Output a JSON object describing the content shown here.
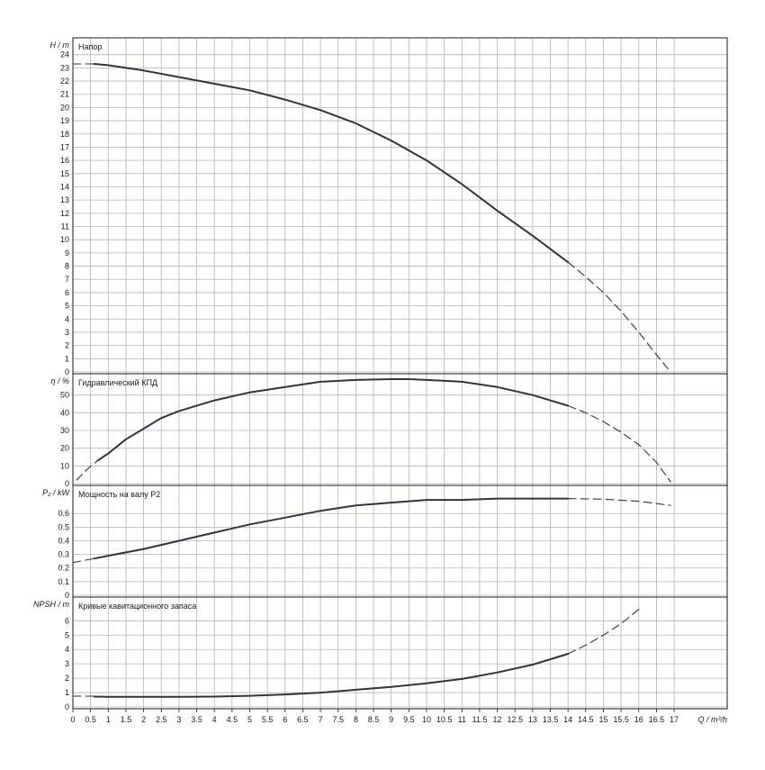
{
  "chart_data": [
    {
      "type": "line",
      "title": "Напор",
      "ylabel": "H / m",
      "xlabel": "Q / m³/h",
      "xlim": [
        0,
        18.5
      ],
      "ylim": [
        0,
        25
      ],
      "yticks": [
        0,
        1,
        2,
        3,
        4,
        5,
        6,
        7,
        8,
        9,
        10,
        11,
        12,
        13,
        14,
        15,
        16,
        17,
        18,
        19,
        20,
        21,
        22,
        23,
        24
      ],
      "series": [
        {
          "style": "solid",
          "x": [
            0.6,
            1,
            2,
            3,
            4,
            5,
            6,
            7,
            8,
            9,
            10,
            11,
            12,
            13,
            14
          ],
          "y": [
            23.3,
            23.2,
            22.8,
            22.3,
            21.8,
            21.3,
            20.6,
            19.8,
            18.8,
            17.5,
            16.0,
            14.2,
            12.2,
            10.3,
            8.3
          ]
        },
        {
          "style": "dashed",
          "x": [
            0,
            0.6
          ],
          "y": [
            23.3,
            23.3
          ]
        },
        {
          "style": "dashed",
          "x": [
            14,
            14.5,
            15,
            15.5,
            16,
            16.5,
            16.9
          ],
          "y": [
            8.3,
            7.2,
            6.0,
            4.6,
            3.0,
            1.3,
            0
          ]
        }
      ]
    },
    {
      "type": "line",
      "title": "Гидравлический КПД",
      "ylabel": "η / %",
      "xlim": [
        0,
        18.5
      ],
      "ylim": [
        0,
        60
      ],
      "yticks": [
        0,
        10,
        20,
        30,
        40,
        50
      ],
      "series": [
        {
          "style": "dashed",
          "x": [
            0.1,
            0.4,
            0.7
          ],
          "y": [
            2,
            8,
            13
          ]
        },
        {
          "style": "solid",
          "x": [
            0.7,
            1,
            1.5,
            2,
            2.5,
            3,
            4,
            5,
            6,
            7,
            8,
            9,
            9.5,
            10,
            11,
            12,
            13,
            14
          ],
          "y": [
            13,
            17,
            25,
            31,
            37,
            41,
            47,
            51.5,
            54.5,
            57.5,
            58.5,
            59,
            59,
            58.5,
            57.5,
            54.5,
            50,
            44
          ]
        },
        {
          "style": "dashed",
          "x": [
            14,
            14.5,
            15,
            15.5,
            16,
            16.5,
            16.9
          ],
          "y": [
            44,
            40,
            35,
            29,
            22,
            12,
            1
          ]
        }
      ]
    },
    {
      "type": "line",
      "title": "Мощность на валу P2",
      "ylabel": "P₂ / kW",
      "xlim": [
        0,
        18.5
      ],
      "ylim": [
        0,
        0.78
      ],
      "yticks": [
        0,
        0.1,
        0.2,
        0.3,
        0.4,
        0.5,
        0.6
      ],
      "yticklabels": [
        "0",
        "0.1",
        "0.2",
        "0.3",
        "0.4",
        "0.5",
        "0.6"
      ],
      "series": [
        {
          "style": "dashed",
          "x": [
            0,
            0.6
          ],
          "y": [
            0.24,
            0.27
          ]
        },
        {
          "style": "solid",
          "x": [
            0.6,
            1,
            2,
            3,
            4,
            5,
            6,
            7,
            8,
            9,
            10,
            11,
            12,
            13,
            14
          ],
          "y": [
            0.27,
            0.29,
            0.34,
            0.4,
            0.46,
            0.52,
            0.57,
            0.62,
            0.66,
            0.68,
            0.7,
            0.7,
            0.71,
            0.71,
            0.71
          ]
        },
        {
          "style": "dashed",
          "x": [
            14,
            15,
            16,
            16.9
          ],
          "y": [
            0.71,
            0.705,
            0.69,
            0.66
          ]
        }
      ]
    },
    {
      "type": "line",
      "title": "Кривые кавитационного запаса",
      "ylabel": "NPSH / m",
      "xlim": [
        0,
        18.5
      ],
      "ylim": [
        0,
        7.4
      ],
      "yticks": [
        0,
        1,
        2,
        3,
        4,
        5,
        6
      ],
      "series": [
        {
          "style": "dashed",
          "x": [
            0,
            0.6
          ],
          "y": [
            0.75,
            0.75
          ]
        },
        {
          "style": "solid",
          "x": [
            0.6,
            1,
            2,
            3,
            4,
            5,
            6,
            7,
            8,
            9,
            10,
            11,
            12,
            13,
            14
          ],
          "y": [
            0.72,
            0.7,
            0.7,
            0.7,
            0.72,
            0.78,
            0.87,
            1.0,
            1.2,
            1.4,
            1.65,
            1.95,
            2.4,
            2.95,
            3.7
          ]
        },
        {
          "style": "dashed",
          "x": [
            14,
            14.5,
            15,
            15.5,
            16
          ],
          "y": [
            3.7,
            4.3,
            5.0,
            5.8,
            6.8
          ]
        }
      ]
    }
  ],
  "x_axis": {
    "label": "Q / m³/h",
    "ticks": [
      0,
      0.5,
      1,
      1.5,
      2,
      2.5,
      3,
      3.5,
      4,
      4.5,
      5,
      5.5,
      6,
      6.5,
      7,
      7.5,
      8,
      8.5,
      9,
      9.5,
      10,
      10.5,
      11,
      11.5,
      12,
      12.5,
      13,
      13.5,
      14,
      14.5,
      15,
      15.5,
      16,
      16.5,
      17
    ],
    "ticklabels": [
      "0",
      "0.5",
      "1",
      "1.5",
      "2",
      "2.5",
      "3",
      "3.5",
      "4",
      "4.5",
      "5",
      "5.5",
      "6",
      "6.5",
      "7",
      "7.5",
      "8",
      "8.5",
      "9",
      "9.5",
      "10",
      "10.5",
      "11",
      "11.5",
      "12",
      "12.5",
      "13",
      "13.5",
      "14",
      "14.5",
      "15",
      "15.5",
      "16",
      "16.5",
      "17"
    ]
  },
  "colors": {
    "curve": "#2e3440",
    "grid": "#b4b4b4",
    "frame": "#1a1a1a",
    "text": "#1a1a1a"
  },
  "grid": true
}
